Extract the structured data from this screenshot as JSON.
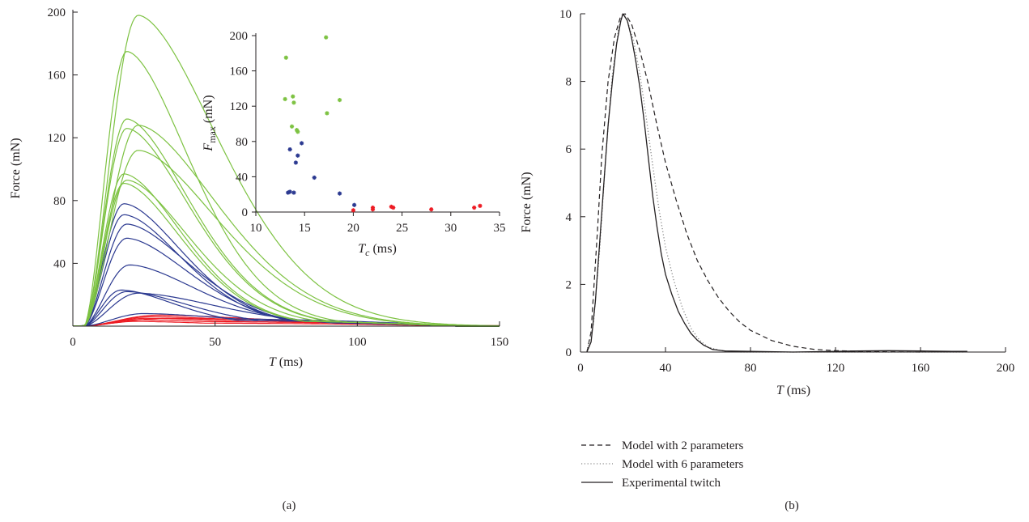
{
  "chart_data": [
    {
      "panel": "(a)",
      "type": "line",
      "xlabel": "T (ms)",
      "ylabel": "Force (mN)",
      "xlim": [
        0,
        150
      ],
      "ylim": [
        0,
        200
      ],
      "xticks": [
        0,
        50,
        100,
        150
      ],
      "yticks": [
        40,
        80,
        120,
        160,
        200
      ],
      "grid": false,
      "colors": {
        "green": "#7dc242",
        "blue": "#2b3990",
        "red": "#ed1c24"
      },
      "series": [
        {
          "group": "green",
          "peak": 198,
          "tpeak": 23,
          "tail": 4
        },
        {
          "group": "green",
          "peak": 175,
          "tpeak": 19,
          "tail": 4
        },
        {
          "group": "green",
          "peak": 132,
          "tpeak": 19,
          "tail": 4
        },
        {
          "group": "green",
          "peak": 128,
          "tpeak": 23,
          "tail": 4
        },
        {
          "group": "green",
          "peak": 126,
          "tpeak": 19,
          "tail": 4
        },
        {
          "group": "green",
          "peak": 112,
          "tpeak": 23,
          "tail": 4
        },
        {
          "group": "green",
          "peak": 97,
          "tpeak": 18,
          "tail": 4
        },
        {
          "group": "green",
          "peak": 93,
          "tpeak": 19,
          "tail": 4
        },
        {
          "group": "green",
          "peak": 91,
          "tpeak": 18,
          "tail": 4
        },
        {
          "group": "blue",
          "peak": 78,
          "tpeak": 18,
          "tail": 4
        },
        {
          "group": "blue",
          "peak": 71,
          "tpeak": 18,
          "tail": 4
        },
        {
          "group": "blue",
          "peak": 65,
          "tpeak": 19,
          "tail": 4
        },
        {
          "group": "blue",
          "peak": 56,
          "tpeak": 19,
          "tail": 4
        },
        {
          "group": "blue",
          "peak": 39,
          "tpeak": 20,
          "tail": 4
        },
        {
          "group": "blue",
          "peak": 23,
          "tpeak": 17,
          "tail": 4
        },
        {
          "group": "blue",
          "peak": 22,
          "tpeak": 19,
          "tail": 4
        },
        {
          "group": "blue",
          "peak": 21,
          "tpeak": 23,
          "tail": 3
        },
        {
          "group": "blue",
          "peak": 8,
          "tpeak": 25,
          "tail": 5
        },
        {
          "group": "red",
          "peak": 7,
          "tpeak": 30,
          "tail": 4
        },
        {
          "group": "red",
          "peak": 6,
          "tpeak": 28,
          "tail": 4
        },
        {
          "group": "red",
          "peak": 5,
          "tpeak": 26,
          "tail": 3
        },
        {
          "group": "red",
          "peak": 5,
          "tpeak": 33,
          "tail": 3
        },
        {
          "group": "red",
          "peak": 4,
          "tpeak": 24,
          "tail": 3
        },
        {
          "group": "red",
          "peak": 3,
          "tpeak": 22,
          "tail": 2
        }
      ]
    },
    {
      "panel": "(a) inset",
      "type": "scatter",
      "xlabel": "Tc (ms)",
      "ylabel": "Fmax (mN)",
      "xlim": [
        10,
        35
      ],
      "ylim": [
        0,
        200
      ],
      "xticks": [
        10,
        15,
        20,
        25,
        30,
        35
      ],
      "yticks": [
        0,
        40,
        80,
        120,
        160,
        200
      ],
      "series": [
        {
          "group": "green",
          "points": [
            [
              13.1,
              175
            ],
            [
              13.0,
              128
            ],
            [
              13.8,
              131
            ],
            [
              13.9,
              124
            ],
            [
              13.7,
              97
            ],
            [
              14.2,
              93
            ],
            [
              14.3,
              91
            ],
            [
              17.2,
              198
            ],
            [
              17.3,
              112
            ],
            [
              18.6,
              127
            ]
          ]
        },
        {
          "group": "blue",
          "points": [
            [
              13.5,
              71
            ],
            [
              13.5,
              23
            ],
            [
              13.3,
              22
            ],
            [
              13.9,
              22
            ],
            [
              14.1,
              56
            ],
            [
              14.3,
              64
            ],
            [
              14.7,
              78
            ],
            [
              16.0,
              39
            ],
            [
              18.6,
              21
            ],
            [
              20.1,
              8
            ]
          ]
        },
        {
          "group": "red",
          "points": [
            [
              20.0,
              2
            ],
            [
              22.0,
              5
            ],
            [
              22.0,
              3
            ],
            [
              23.9,
              6
            ],
            [
              24.1,
              5
            ],
            [
              28.0,
              3
            ],
            [
              32.4,
              5
            ],
            [
              33.0,
              7
            ]
          ]
        }
      ]
    },
    {
      "panel": "(b)",
      "type": "line",
      "xlabel": "T (ms)",
      "ylabel": "Force (mN)",
      "xlim": [
        0,
        200
      ],
      "ylim": [
        0,
        10
      ],
      "xticks": [
        0,
        40,
        80,
        120,
        160,
        200
      ],
      "yticks": [
        0,
        2,
        4,
        6,
        8,
        10
      ],
      "grid": false,
      "legend_position": "bottom",
      "series": [
        {
          "name": "Model with 2 parameters",
          "style": "dashed",
          "points": [
            [
              3,
              0
            ],
            [
              5,
              0.6
            ],
            [
              8,
              3.6
            ],
            [
              10,
              5.8
            ],
            [
              13,
              8.0
            ],
            [
              16,
              9.3
            ],
            [
              19,
              9.95
            ],
            [
              21,
              10
            ],
            [
              24,
              9.7
            ],
            [
              28,
              8.9
            ],
            [
              32,
              7.9
            ],
            [
              36,
              6.7
            ],
            [
              40,
              5.6
            ],
            [
              45,
              4.5
            ],
            [
              50,
              3.5
            ],
            [
              55,
              2.7
            ],
            [
              60,
              2.1
            ],
            [
              65,
              1.6
            ],
            [
              70,
              1.2
            ],
            [
              75,
              0.88
            ],
            [
              80,
              0.64
            ],
            [
              90,
              0.34
            ],
            [
              100,
              0.17
            ],
            [
              110,
              0.08
            ],
            [
              120,
              0.04
            ],
            [
              140,
              0.01
            ],
            [
              160,
              0
            ]
          ]
        },
        {
          "name": "Model with 6 parameters",
          "style": "dotted",
          "points": [
            [
              3,
              0
            ],
            [
              6,
              0.8
            ],
            [
              9,
              3.0
            ],
            [
              12,
              5.9
            ],
            [
              15,
              8.2
            ],
            [
              18,
              9.6
            ],
            [
              20,
              10
            ],
            [
              22,
              9.8
            ],
            [
              25,
              9.2
            ],
            [
              28,
              8.2
            ],
            [
              31,
              6.9
            ],
            [
              34,
              5.5
            ],
            [
              37,
              4.2
            ],
            [
              40,
              3.1
            ],
            [
              44,
              2.1
            ],
            [
              48,
              1.3
            ],
            [
              52,
              0.7
            ],
            [
              56,
              0.35
            ],
            [
              60,
              0.15
            ],
            [
              66,
              0.04
            ],
            [
              75,
              0
            ],
            [
              180,
              0
            ]
          ]
        },
        {
          "name": "Experimental twitch",
          "style": "solid",
          "points": [
            [
              3,
              0
            ],
            [
              5,
              0.3
            ],
            [
              7,
              1.5
            ],
            [
              9,
              3.2
            ],
            [
              11,
              5.0
            ],
            [
              13,
              6.7
            ],
            [
              15,
              8.0
            ],
            [
              17,
              9.1
            ],
            [
              19,
              9.8
            ],
            [
              20,
              10
            ],
            [
              22,
              9.8
            ],
            [
              24,
              9.3
            ],
            [
              26,
              8.6
            ],
            [
              28,
              7.8
            ],
            [
              30,
              6.8
            ],
            [
              32,
              5.7
            ],
            [
              34,
              4.6
            ],
            [
              36,
              3.7
            ],
            [
              38,
              2.9
            ],
            [
              40,
              2.3
            ],
            [
              43,
              1.7
            ],
            [
              46,
              1.2
            ],
            [
              49,
              0.85
            ],
            [
              52,
              0.55
            ],
            [
              55,
              0.35
            ],
            [
              58,
              0.2
            ],
            [
              62,
              0.08
            ],
            [
              68,
              0.03
            ],
            [
              80,
              0.02
            ],
            [
              100,
              0
            ],
            [
              120,
              0.02
            ],
            [
              130,
              0.03
            ],
            [
              145,
              0.04
            ],
            [
              160,
              0.03
            ],
            [
              175,
              0.02
            ],
            [
              182,
              0.02
            ]
          ]
        }
      ]
    }
  ],
  "panel_labels": {
    "a": "(a)",
    "b": "(b)"
  },
  "panel_a": {
    "ylabel": "Force (mN)",
    "xlabel_italic": "T",
    "xlabel_unit": " (ms)",
    "yticks": [
      "40",
      "80",
      "120",
      "160",
      "200"
    ],
    "xticks": [
      "0",
      "50",
      "100",
      "150"
    ],
    "inset": {
      "ylabel_main": "F",
      "ylabel_sub": "max",
      "ylabel_unit": "  (mN)",
      "xlabel_main": "T",
      "xlabel_sub": "c",
      "xlabel_unit": " (ms)",
      "yticks": [
        "0",
        "40",
        "80",
        "120",
        "160",
        "200"
      ],
      "xticks": [
        "10",
        "15",
        "20",
        "25",
        "30",
        "35"
      ]
    }
  },
  "panel_b": {
    "ylabel": "Force (mN)",
    "xlabel_italic": "T",
    "xlabel_unit": " (ms)",
    "yticks": [
      "0",
      "2",
      "4",
      "6",
      "8",
      "10"
    ],
    "xticks": [
      "0",
      "40",
      "80",
      "120",
      "160",
      "200"
    ],
    "legend": [
      "Model with 2 parameters",
      "Model with 6 parameters",
      "Experimental twitch"
    ]
  }
}
